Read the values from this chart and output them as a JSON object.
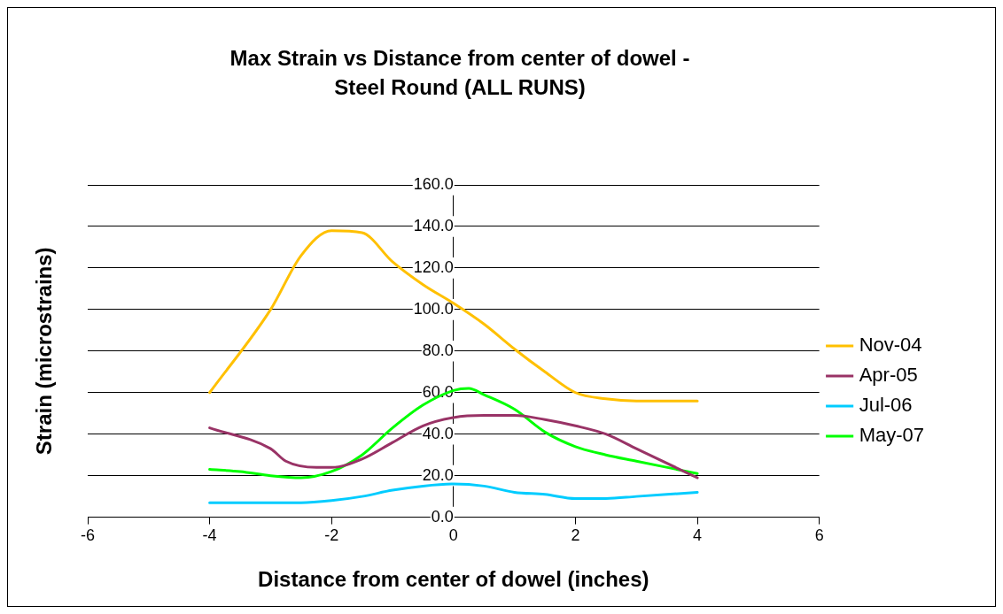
{
  "chart_data": {
    "type": "line",
    "title": "Max Strain vs Distance from center of dowel - Steel Round (ALL RUNS)",
    "xlabel": "Distance from center of dowel (inches)",
    "ylabel": "Strain (microstrains)",
    "xlim": [
      -6,
      6
    ],
    "xticks": [
      -6,
      -4,
      -2,
      0,
      2,
      4,
      6
    ],
    "ylim": [
      0,
      160
    ],
    "yticks": [
      {
        "value": 0,
        "label": "0.0"
      },
      {
        "value": 20,
        "label": "20.0"
      },
      {
        "value": 40,
        "label": "40.0"
      },
      {
        "value": 60,
        "label": "60.0"
      },
      {
        "value": 80,
        "label": "80.0"
      },
      {
        "value": 100,
        "label": "100.0"
      },
      {
        "value": 120,
        "label": "120.0"
      },
      {
        "value": 140,
        "label": "140.0"
      },
      {
        "value": 160,
        "label": "160.0"
      }
    ],
    "grid": "y",
    "legend": "right",
    "marker": "none",
    "line_style": "solid",
    "series": [
      {
        "name": "Nov-04",
        "color": "#ffc000",
        "x": [
          -4,
          -3,
          -2.5,
          -2,
          -1.5,
          -1,
          -0.5,
          0,
          0.5,
          1,
          1.5,
          2,
          2.5,
          3,
          4
        ],
        "values": [
          60,
          100,
          126,
          138,
          137,
          123,
          112,
          103,
          93,
          81,
          70,
          60,
          57,
          56,
          56
        ]
      },
      {
        "name": "Apr-05",
        "color": "#993366",
        "x": [
          -4,
          -3,
          -2.75,
          -2.25,
          -2,
          -1.5,
          -1,
          -0.5,
          0,
          0.5,
          1,
          1.5,
          2,
          2.5,
          3,
          4
        ],
        "values": [
          43,
          33,
          27,
          24,
          24,
          28,
          36,
          44,
          48,
          49,
          49,
          47,
          44,
          40,
          33,
          19
        ]
      },
      {
        "name": "Jul-06",
        "color": "#00ccff",
        "x": [
          -4,
          -3,
          -2.5,
          -2,
          -1.5,
          -1,
          -0.5,
          0,
          0.5,
          1,
          1.5,
          2,
          2.5,
          3,
          4
        ],
        "values": [
          7,
          7,
          7,
          8,
          10,
          13,
          15,
          16,
          15,
          12,
          11,
          9,
          9,
          10,
          12
        ]
      },
      {
        "name": "May-07",
        "color": "#00ff00",
        "x": [
          -4,
          -3.5,
          -3,
          -2.5,
          -2,
          -1.5,
          -1,
          -0.5,
          0,
          0.25,
          0.5,
          1,
          1.5,
          2,
          2.5,
          3,
          4
        ],
        "values": [
          23,
          22,
          20,
          19,
          22,
          30,
          43,
          54,
          61,
          62,
          59,
          52,
          41,
          34,
          30,
          27,
          21
        ]
      }
    ]
  }
}
